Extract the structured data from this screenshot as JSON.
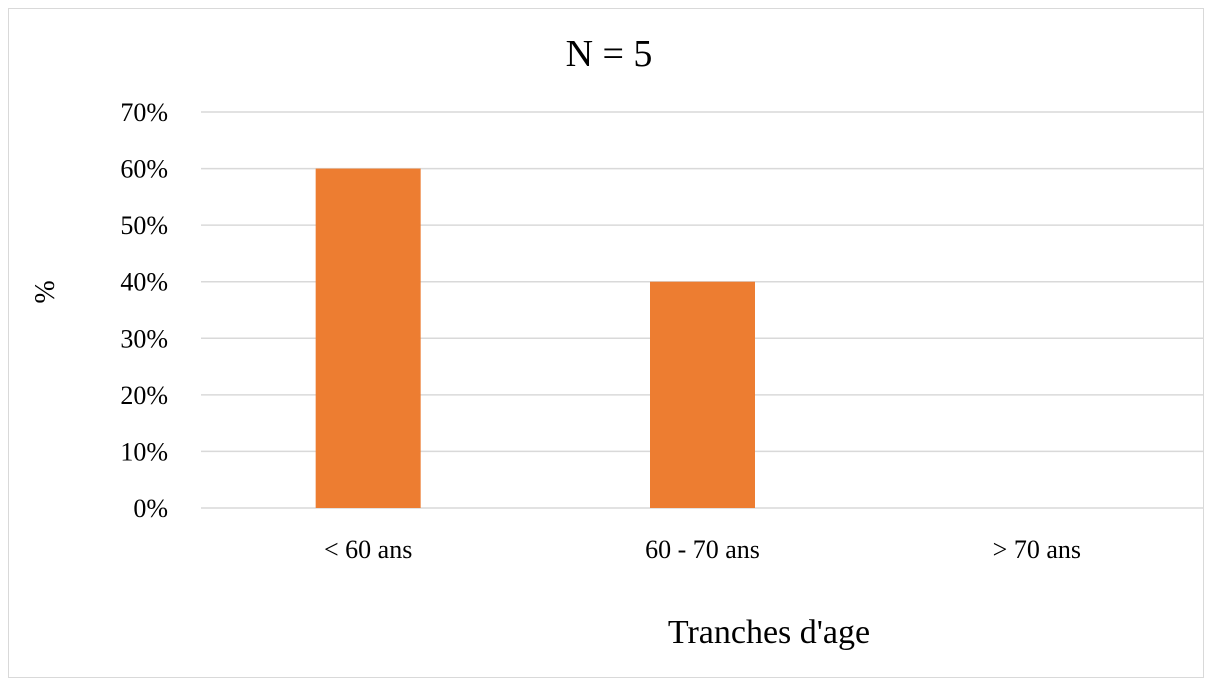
{
  "chart_data": {
    "type": "bar",
    "title": "N = 5",
    "xlabel": "Tranches d'age",
    "ylabel": "%",
    "categories": [
      "< 60 ans",
      "60 - 70 ans",
      "> 70 ans"
    ],
    "values": [
      60,
      40,
      0
    ],
    "ylim": [
      0,
      70
    ],
    "yticks": [
      "0%",
      "10%",
      "20%",
      "30%",
      "40%",
      "50%",
      "60%",
      "70%"
    ],
    "grid": true,
    "legend": "none",
    "colors": {
      "bar": "#ED7D31",
      "grid": "#D9D9D9",
      "axis": "#D9D9D9",
      "text": "#000000",
      "border": "#D9D9D9"
    }
  }
}
